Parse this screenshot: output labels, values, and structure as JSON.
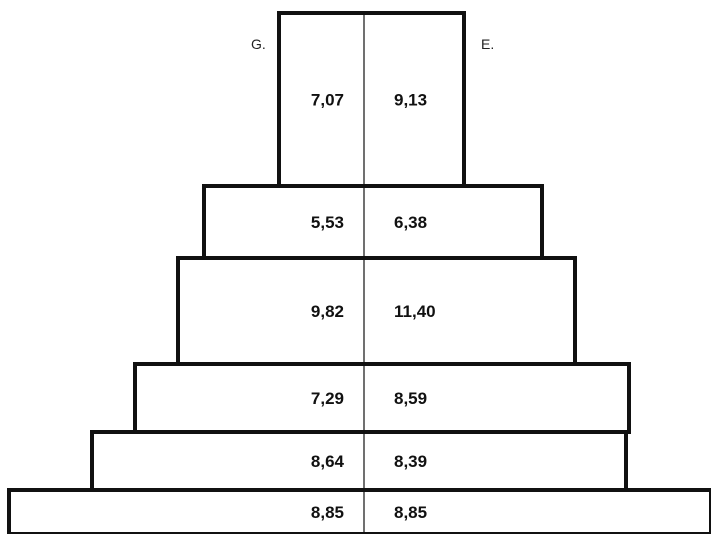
{
  "chart_data": {
    "type": "bar",
    "orientation": "horizontal-pyramid",
    "left_label": "G.",
    "right_label": "E.",
    "rows": [
      {
        "left": "7,07",
        "right": "9,13",
        "left_value": 7.07,
        "right_value": 9.13
      },
      {
        "left": "5,53",
        "right": "6,38",
        "left_value": 5.53,
        "right_value": 6.38
      },
      {
        "left": "9,82",
        "right": "11,40",
        "left_value": 9.82,
        "right_value": 11.4
      },
      {
        "left": "7,29",
        "right": "8,59",
        "left_value": 7.29,
        "right_value": 8.59
      },
      {
        "left": "8,64",
        "right": "8,39",
        "left_value": 8.64,
        "right_value": 8.39
      },
      {
        "left": "8,85",
        "right": "8,85",
        "left_value": 8.85,
        "right_value": 8.85
      }
    ]
  }
}
